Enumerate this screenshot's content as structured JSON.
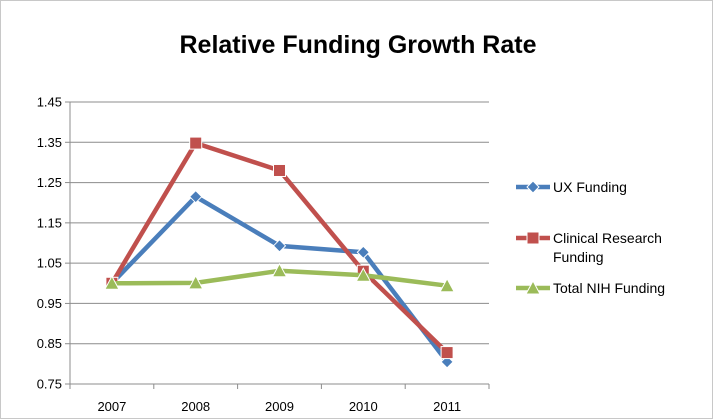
{
  "chart_data": {
    "type": "line",
    "title": "Relative Funding Growth Rate",
    "xlabel": "",
    "ylabel": "",
    "categories": [
      "2007",
      "2008",
      "2009",
      "2010",
      "2011"
    ],
    "ylim": [
      0.75,
      1.45
    ],
    "yticks": [
      "0.75",
      "0.85",
      "0.95",
      "1.05",
      "1.15",
      "1.25",
      "1.35",
      "1.45"
    ],
    "grid": true,
    "legend_position": "right",
    "series": [
      {
        "name": "UX Funding",
        "color": "#4a7ebb",
        "marker": "diamond",
        "values": [
          1.0,
          1.215,
          1.093,
          1.077,
          0.805
        ]
      },
      {
        "name": "Clinical Research Funding",
        "name_lines": [
          "Clinical Research",
          "Funding"
        ],
        "color": "#c0504d",
        "marker": "square",
        "values": [
          1.0,
          1.348,
          1.28,
          1.03,
          0.828
        ]
      },
      {
        "name": "Total NIH Funding",
        "color": "#9bbb59",
        "marker": "triangle",
        "values": [
          1.0,
          1.001,
          1.031,
          1.02,
          0.994
        ]
      }
    ]
  }
}
